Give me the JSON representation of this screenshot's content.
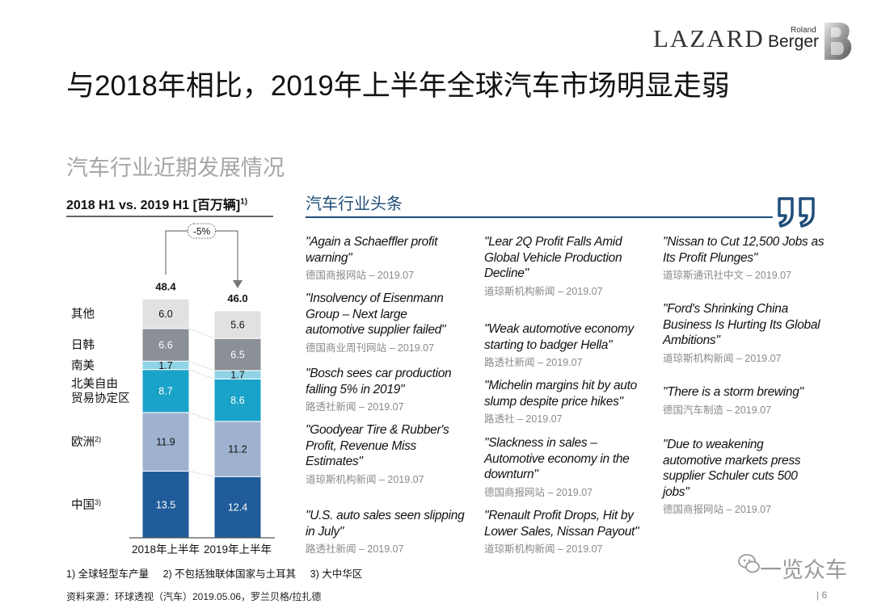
{
  "header": {
    "logo_lazard": "LAZARD",
    "logo_rb_top": "Roland",
    "logo_rb_main": "Berger"
  },
  "title": "与2018年相比，2019年上半年全球汽车市场明显走弱",
  "subtitle": "汽车行业近期发展情况",
  "chart_header": {
    "text": "2018 H1 vs. 2019 H1 [百万辆]",
    "sup": "1)"
  },
  "chart_data": {
    "type": "bar",
    "stacked": true,
    "categories": [
      "2018年上半年",
      "2019年上半年"
    ],
    "totals": [
      48.4,
      46.0
    ],
    "total_labels": [
      "48.4",
      "46.0"
    ],
    "change_label": "-5%",
    "series": [
      {
        "name": "中国",
        "sup": "3)",
        "values": [
          13.5,
          12.4
        ],
        "labels": [
          "13.5",
          "12.4"
        ],
        "color": "#1f5c99",
        "text_color": "#ffffff"
      },
      {
        "name": "欧洲",
        "sup": "2)",
        "values": [
          11.9,
          11.2
        ],
        "labels": [
          "11.9",
          "11.2"
        ],
        "color": "#9eb2cf",
        "text_color": "#111111"
      },
      {
        "name": "北美自由\n贸易协定区",
        "sup": "",
        "values": [
          8.7,
          8.6
        ],
        "labels": [
          "8.7",
          "8.6"
        ],
        "color": "#1aa3c8",
        "text_color": "#ffffff"
      },
      {
        "name": "南美",
        "sup": "",
        "values": [
          1.7,
          1.7
        ],
        "labels": [
          "1.7",
          "1.7"
        ],
        "color": "#8fd3e6",
        "text_color": "#111111"
      },
      {
        "name": "日韩",
        "sup": "",
        "values": [
          6.6,
          6.5
        ],
        "labels": [
          "6.6",
          "6.5"
        ],
        "color": "#8b8f97",
        "text_color": "#ffffff"
      },
      {
        "name": "其他",
        "sup": "",
        "values": [
          6.0,
          5.6
        ],
        "labels": [
          "6.0",
          "5.6"
        ],
        "color": "#e1e1e3",
        "text_color": "#111111"
      }
    ]
  },
  "news": {
    "header": "汽车行业头条",
    "columns": [
      [
        {
          "title": "\"Again a Schaeffler profit warning\"",
          "source": "德国商报网站 – 2019.07"
        },
        {
          "title": "\"Insolvency of Eisenmann Group – Next large automotive supplier failed\"",
          "source": "德国商业周刊网站 – 2019.07"
        },
        {
          "title": "\"Bosch sees car production falling 5% in 2019\"",
          "source": "路透社新闻 – 2019.07"
        },
        {
          "title": "\"Goodyear Tire & Rubber's Profit, Revenue Miss Estimates\"",
          "source": "道琼斯机构新闻 – 2019.07"
        },
        {
          "title": "\"U.S. auto sales seen slipping in July\"",
          "source": "路透社新闻 – 2019.07"
        }
      ],
      [
        {
          "title": "\"Lear 2Q Profit Falls Amid Global Vehicle Production Decline\"",
          "source": "道琼斯机构新闻 – 2019.07"
        },
        {
          "title": "\"Weak automotive economy starting to badger Hella\"",
          "source": "路透社新闻 – 2019.07"
        },
        {
          "title": "\"Michelin margins hit by auto slump despite price hikes\"",
          "source": "路透社 – 2019.07"
        },
        {
          "title": "\"Slackness in sales – Automotive economy in the downturn\"",
          "source": "德国商报网站 – 2019.07"
        },
        {
          "title": "\"Renault Profit Drops, Hit by Lower Sales, Nissan Payout\"",
          "source": "道琼斯机构新闻 – 2019.07"
        }
      ],
      [
        {
          "title": "\"Nissan to Cut 12,500 Jobs as Its Profit Plunges\"",
          "source": "道琼斯通讯社中文 – 2019.07"
        },
        {
          "title": "\"Ford's Shrinking China Business Is Hurting Its Global Ambitions\"",
          "source": "道琼斯机构新闻 – 2019.07"
        },
        {
          "title": "\"There is a storm brewing\"",
          "source": "德国汽车制造 – 2019.07"
        },
        {
          "title": "\"Due to weakening automotive markets press supplier Schuler cuts 500 jobs\"",
          "source": "德国商报网站 – 2019.07"
        }
      ]
    ]
  },
  "footnotes": [
    "1) 全球轻型车产量",
    "2) 不包括独联体国家与土耳其",
    "3) 大中华区"
  ],
  "source_line": "资料来源：环球透视（汽车）2019.05.06，罗兰贝格/拉扎德",
  "watermark": "一览众车",
  "page_number": "| 6",
  "colors": {
    "news_accent": "#1f4e79",
    "subtitle_gray": "#a6a6a6"
  }
}
